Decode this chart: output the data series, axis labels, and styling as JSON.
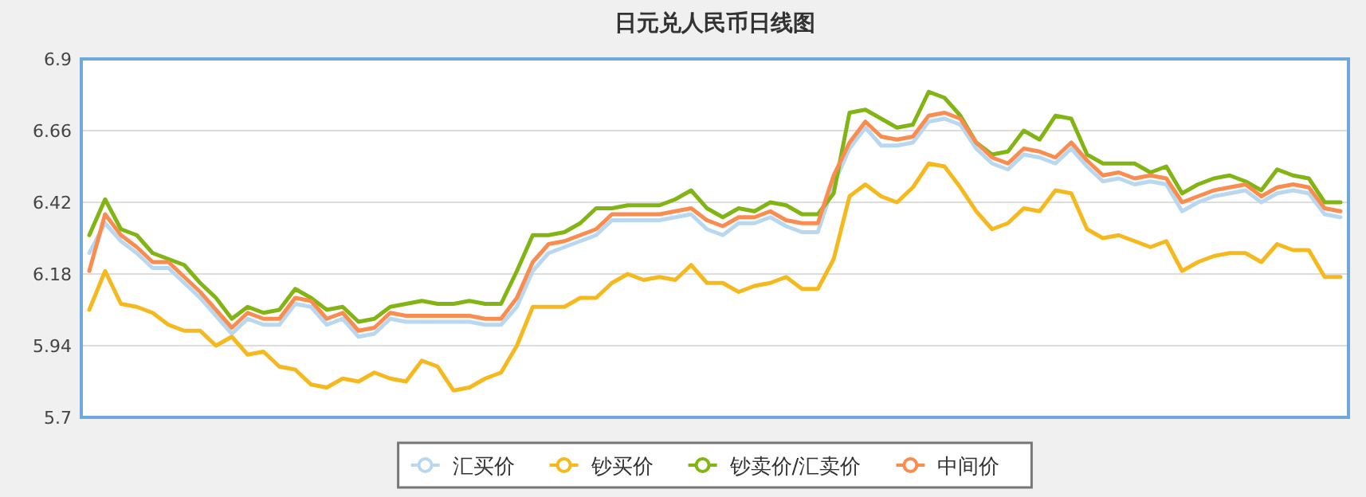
{
  "chart_data": {
    "type": "line",
    "title": "日元兑人民币日线图",
    "categories": [
      null,
      null,
      null,
      null,
      null,
      null,
      null,
      null,
      null,
      null,
      null,
      null,
      null,
      null,
      null,
      null,
      null,
      null,
      null,
      null,
      null,
      null,
      null,
      null,
      null,
      null,
      null,
      null,
      null,
      null,
      null,
      null,
      null,
      null,
      null,
      null,
      null,
      null,
      null,
      null,
      null,
      null,
      null,
      null,
      null,
      null,
      null,
      null,
      null,
      null,
      null,
      null,
      null,
      null,
      null,
      null,
      null,
      null,
      null,
      null,
      null,
      null,
      null,
      null,
      null,
      null,
      null,
      null,
      null,
      null,
      null,
      null,
      null,
      null,
      null,
      null,
      null,
      null,
      null,
      null
    ],
    "ylim": [
      5.7,
      6.9
    ],
    "yticks": [
      5.7,
      5.94,
      6.18,
      6.42,
      6.66,
      6.9
    ],
    "grid": "y",
    "legend": "bottom",
    "tick_labels": "y",
    "series": [
      {
        "name": "汇买价",
        "color": "#b9d8f0",
        "values": [
          6.25,
          6.35,
          6.29,
          6.25,
          6.2,
          6.2,
          6.15,
          6.1,
          6.04,
          5.98,
          6.03,
          6.01,
          6.01,
          6.08,
          6.07,
          6.01,
          6.03,
          5.97,
          5.98,
          6.03,
          6.02,
          6.02,
          6.02,
          6.02,
          6.02,
          6.01,
          6.01,
          6.07,
          6.19,
          6.25,
          6.27,
          6.29,
          6.31,
          6.36,
          6.36,
          6.36,
          6.36,
          6.37,
          6.38,
          6.33,
          6.31,
          6.35,
          6.35,
          6.37,
          6.34,
          6.32,
          6.32,
          6.48,
          6.6,
          6.67,
          6.61,
          6.61,
          6.62,
          6.69,
          6.7,
          6.68,
          6.6,
          6.55,
          6.53,
          6.58,
          6.57,
          6.55,
          6.6,
          6.54,
          6.49,
          6.5,
          6.48,
          6.49,
          6.48,
          6.39,
          6.42,
          6.44,
          6.45,
          6.46,
          6.42,
          6.45,
          6.46,
          6.45,
          6.38,
          6.37
        ]
      },
      {
        "name": "钞买价",
        "color": "#f5b91e",
        "values": [
          6.06,
          6.19,
          6.08,
          6.07,
          6.05,
          6.01,
          5.99,
          5.99,
          5.94,
          5.97,
          5.91,
          5.92,
          5.87,
          5.86,
          5.81,
          5.8,
          5.83,
          5.82,
          5.85,
          5.83,
          5.82,
          5.89,
          5.87,
          5.79,
          5.8,
          5.83,
          5.85,
          5.94,
          6.07,
          6.07,
          6.07,
          6.1,
          6.1,
          6.15,
          6.18,
          6.16,
          6.17,
          6.16,
          6.21,
          6.15,
          6.15,
          6.12,
          6.14,
          6.15,
          6.17,
          6.13,
          6.13,
          6.23,
          6.44,
          6.48,
          6.44,
          6.42,
          6.47,
          6.55,
          6.54,
          6.47,
          6.39,
          6.33,
          6.35,
          6.4,
          6.39,
          6.46,
          6.45,
          6.33,
          6.3,
          6.31,
          6.29,
          6.27,
          6.29,
          6.19,
          6.22,
          6.24,
          6.25,
          6.25,
          6.22,
          6.28,
          6.26,
          6.26,
          6.17,
          6.17
        ]
      },
      {
        "name": "钞卖价/汇卖价",
        "color": "#82b414",
        "values": [
          6.31,
          6.43,
          6.33,
          6.31,
          6.25,
          6.23,
          6.21,
          6.15,
          6.1,
          6.03,
          6.07,
          6.05,
          6.06,
          6.13,
          6.1,
          6.06,
          6.07,
          6.02,
          6.03,
          6.07,
          6.08,
          6.09,
          6.08,
          6.08,
          6.09,
          6.08,
          6.08,
          6.19,
          6.31,
          6.31,
          6.32,
          6.35,
          6.4,
          6.4,
          6.41,
          6.41,
          6.41,
          6.43,
          6.46,
          6.4,
          6.37,
          6.4,
          6.39,
          6.42,
          6.41,
          6.38,
          6.38,
          6.45,
          6.72,
          6.73,
          6.7,
          6.67,
          6.68,
          6.79,
          6.77,
          6.71,
          6.62,
          6.58,
          6.59,
          6.66,
          6.63,
          6.71,
          6.7,
          6.58,
          6.55,
          6.55,
          6.55,
          6.52,
          6.54,
          6.45,
          6.48,
          6.5,
          6.51,
          6.49,
          6.46,
          6.53,
          6.51,
          6.5,
          6.42,
          6.42
        ]
      },
      {
        "name": "中间价",
        "color": "#fa8c50",
        "values": [
          6.19,
          6.38,
          6.31,
          6.27,
          6.22,
          6.22,
          6.17,
          6.12,
          6.06,
          6.0,
          6.05,
          6.03,
          6.03,
          6.1,
          6.09,
          6.03,
          6.05,
          5.99,
          6.0,
          6.05,
          6.04,
          6.04,
          6.04,
          6.04,
          6.04,
          6.03,
          6.03,
          6.1,
          6.22,
          6.28,
          6.29,
          6.31,
          6.33,
          6.38,
          6.38,
          6.38,
          6.38,
          6.39,
          6.4,
          6.36,
          6.34,
          6.37,
          6.37,
          6.39,
          6.36,
          6.35,
          6.35,
          6.51,
          6.62,
          6.69,
          6.64,
          6.63,
          6.64,
          6.71,
          6.72,
          6.7,
          6.62,
          6.57,
          6.55,
          6.6,
          6.59,
          6.57,
          6.62,
          6.56,
          6.51,
          6.52,
          6.5,
          6.51,
          6.5,
          6.42,
          6.44,
          6.46,
          6.47,
          6.48,
          6.44,
          6.47,
          6.48,
          6.47,
          6.4,
          6.39
        ]
      }
    ]
  }
}
